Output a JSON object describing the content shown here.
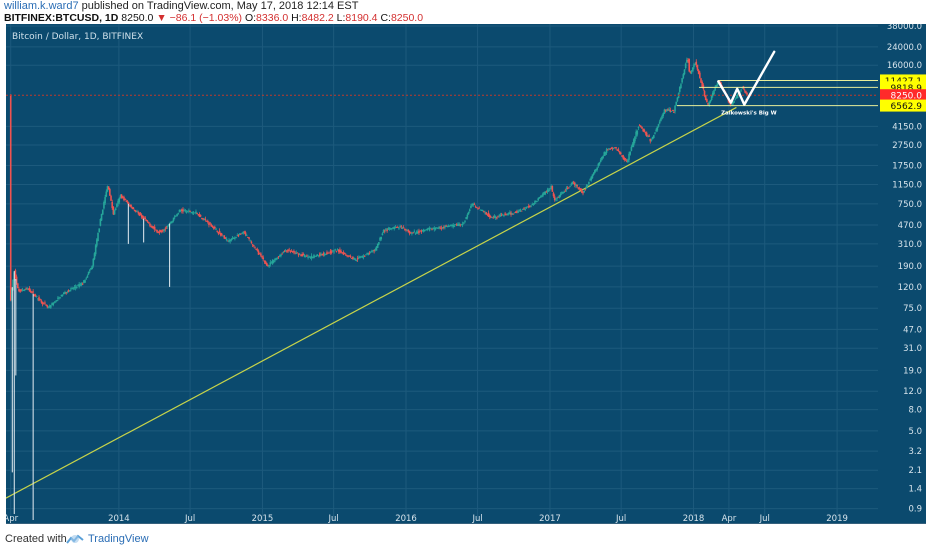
{
  "header": {
    "username": "william.k.ward7",
    "published_text": " published on TradingView.com, May 17, 2018 12:14 EST",
    "symbol": "BITFINEX:BTCUSD, 1D",
    "last_price": "8250.0",
    "change": "−86.1 (−1.03%)",
    "open_label": "O:",
    "open_value": "8336.0",
    "high_label": "H:",
    "high_value": "8482.2",
    "low_label": "L:",
    "low_value": "8190.4",
    "close_label": "C:",
    "close_value": "8250.0"
  },
  "footer": {
    "created_with": "Created with",
    "brand": "TradingView"
  },
  "colors": {
    "background": "#0b4a6e",
    "up_candle": "#26a69a",
    "down_candle": "#ef5350",
    "trendline": "#c7d44a",
    "level_line": "#e8ef9a",
    "price_label_yellow": "#ffff00",
    "price_label_red": "#ff2a2a",
    "drawing": "#ffffff"
  },
  "chart_data": {
    "type": "candlestick",
    "title": "Bitcoin / Dollar, 1D, BITFINEX",
    "y_scale": "log",
    "ylim": [
      0.7,
      38000
    ],
    "x_range": [
      "2013-03-20",
      "2019-04-15"
    ],
    "x_tick_labels": [
      {
        "date": "2013-04-01",
        "label": "Apr"
      },
      {
        "date": "2014-01-01",
        "label": "2014"
      },
      {
        "date": "2014-07-01",
        "label": "Jul"
      },
      {
        "date": "2015-01-01",
        "label": "2015"
      },
      {
        "date": "2015-07-01",
        "label": "Jul"
      },
      {
        "date": "2016-01-01",
        "label": "2016"
      },
      {
        "date": "2016-07-01",
        "label": "Jul"
      },
      {
        "date": "2017-01-01",
        "label": "2017"
      },
      {
        "date": "2017-07-01",
        "label": "Jul"
      },
      {
        "date": "2018-01-01",
        "label": "2018"
      },
      {
        "date": "2018-04-01",
        "label": "Apr"
      },
      {
        "date": "2018-07-01",
        "label": "Jul"
      },
      {
        "date": "2019-01-01",
        "label": "2019"
      }
    ],
    "y_ticks": [
      "38000.0",
      "24000.0",
      "16000.0",
      "4150.0",
      "2750.0",
      "1750.0",
      "1150.0",
      "750.0",
      "470.0",
      "310.0",
      "190.0",
      "120.0",
      "75.0",
      "47.0",
      "31.0",
      "19.0",
      "12.0",
      "8.0",
      "5.0",
      "3.2",
      "2.1",
      "1.4",
      "0.9"
    ],
    "price_path": [
      [
        "2013-04-01",
        90
      ],
      [
        "2013-04-10",
        170
      ],
      [
        "2013-04-20",
        110
      ],
      [
        "2013-05-15",
        115
      ],
      [
        "2013-07-05",
        75
      ],
      [
        "2013-08-15",
        105
      ],
      [
        "2013-10-01",
        130
      ],
      [
        "2013-10-25",
        190
      ],
      [
        "2013-11-18",
        600
      ],
      [
        "2013-12-04",
        1150
      ],
      [
        "2013-12-18",
        600
      ],
      [
        "2014-01-05",
        900
      ],
      [
        "2014-02-10",
        650
      ],
      [
        "2014-03-01",
        560
      ],
      [
        "2014-04-10",
        400
      ],
      [
        "2014-05-01",
        440
      ],
      [
        "2014-06-05",
        650
      ],
      [
        "2014-07-15",
        620
      ],
      [
        "2014-08-20",
        480
      ],
      [
        "2014-10-05",
        330
      ],
      [
        "2014-11-15",
        400
      ],
      [
        "2015-01-14",
        190
      ],
      [
        "2015-03-01",
        270
      ],
      [
        "2015-05-01",
        230
      ],
      [
        "2015-07-10",
        270
      ],
      [
        "2015-08-25",
        220
      ],
      [
        "2015-10-15",
        270
      ],
      [
        "2015-11-05",
        420
      ],
      [
        "2015-12-15",
        450
      ],
      [
        "2016-01-15",
        390
      ],
      [
        "2016-03-01",
        430
      ],
      [
        "2016-05-25",
        480
      ],
      [
        "2016-06-17",
        750
      ],
      [
        "2016-08-05",
        560
      ],
      [
        "2016-10-01",
        610
      ],
      [
        "2016-11-15",
        730
      ],
      [
        "2017-01-04",
        1100
      ],
      [
        "2017-01-12",
        800
      ],
      [
        "2017-03-01",
        1200
      ],
      [
        "2017-03-25",
        950
      ],
      [
        "2017-05-25",
        2500
      ],
      [
        "2017-06-15",
        2600
      ],
      [
        "2017-07-15",
        1900
      ],
      [
        "2017-08-15",
        4300
      ],
      [
        "2017-09-15",
        3000
      ],
      [
        "2017-10-20",
        6000
      ],
      [
        "2017-11-12",
        5800
      ],
      [
        "2017-12-17",
        19500
      ],
      [
        "2017-12-22",
        13000
      ],
      [
        "2018-01-06",
        17000
      ],
      [
        "2018-02-06",
        6500
      ],
      [
        "2018-03-05",
        11500
      ],
      [
        "2018-04-06",
        6600
      ],
      [
        "2018-05-05",
        9800
      ],
      [
        "2018-05-17",
        8250
      ]
    ],
    "wicks": [
      {
        "date": "2013-04-05",
        "low": 2.0
      },
      {
        "date": "2013-04-10",
        "low": 0.8
      },
      {
        "date": "2013-04-14",
        "low": 17
      },
      {
        "date": "2013-05-28",
        "low": 0.7
      },
      {
        "date": "2014-01-25",
        "low": 310
      },
      {
        "date": "2014-03-05",
        "low": 320
      },
      {
        "date": "2014-05-10",
        "low": 120
      }
    ],
    "trendline": {
      "start": [
        "2012-10-15",
        0.55
      ],
      "end": [
        "2018-04-20",
        6300
      ],
      "color": "#c7d44a"
    },
    "levels": [
      {
        "value": 11427.1,
        "label": "11427.1",
        "start": "2018-03-05",
        "style": "yellow"
      },
      {
        "value": 9818.9,
        "label": "9818.9",
        "start": "2018-01-15",
        "style": "yellow"
      },
      {
        "value": 8250.0,
        "label": "8250.0",
        "start": "2013-03-20",
        "style": "red"
      },
      {
        "value": 6562.9,
        "label": "6562.9",
        "start": "2017-11-20",
        "style": "yellow"
      }
    ],
    "w_pattern": {
      "points": [
        [
          "2018-03-05",
          11200
        ],
        [
          "2018-04-06",
          7000
        ],
        [
          "2018-04-22",
          9500
        ],
        [
          "2018-05-10",
          6700
        ],
        [
          "2018-07-25",
          21500
        ]
      ],
      "label": "Zalkowski's Big W"
    }
  }
}
